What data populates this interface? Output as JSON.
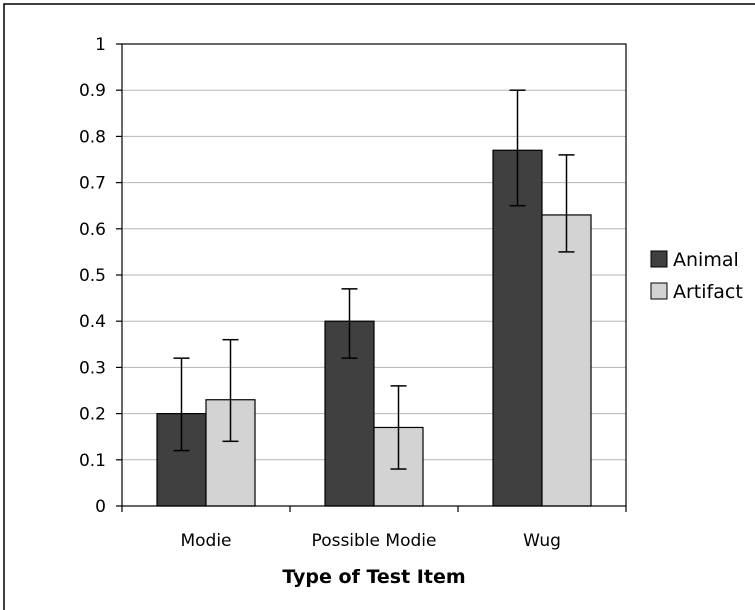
{
  "chart_data": {
    "type": "bar",
    "title": "",
    "xlabel": "Type of Test Item",
    "ylabel": "",
    "categories": [
      "Modie",
      "Possible Modie",
      "Wug"
    ],
    "ylim": [
      0,
      1
    ],
    "yticks": [
      "0",
      "0.1",
      "0.2",
      "0.3",
      "0.4",
      "0.5",
      "0.6",
      "0.7",
      "0.8",
      "0.9",
      "1"
    ],
    "grid": true,
    "legend_position": "right",
    "series": [
      {
        "name": "Animal",
        "color": "#404040",
        "values": [
          0.2,
          0.4,
          0.77
        ],
        "error_low": [
          0.12,
          0.32,
          0.65
        ],
        "error_high": [
          0.32,
          0.47,
          0.9
        ]
      },
      {
        "name": "Artifact",
        "color": "#d3d3d3",
        "values": [
          0.23,
          0.17,
          0.63
        ],
        "error_low": [
          0.14,
          0.08,
          0.55
        ],
        "error_high": [
          0.36,
          0.26,
          0.76
        ]
      }
    ]
  }
}
